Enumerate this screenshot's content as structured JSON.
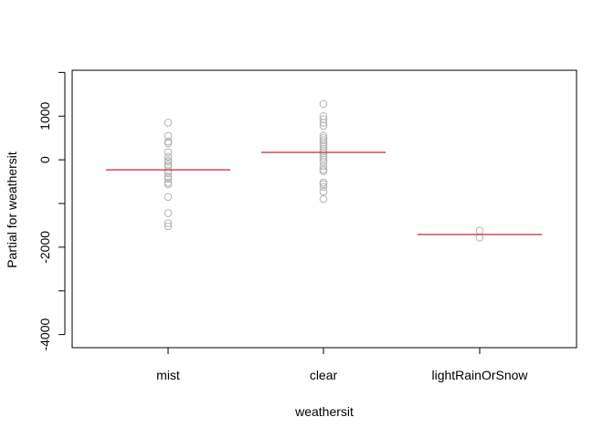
{
  "chart_data": {
    "type": "scatter",
    "title": "",
    "xlabel": "weathersit",
    "ylabel": "Partial for weathersit",
    "categories": [
      "mist",
      "clear",
      "lightRainOrSnow"
    ],
    "yticks": [
      -4000,
      -2000,
      0,
      1000
    ],
    "ytick_labels": [
      "-4000",
      "-2000",
      "0",
      "1000"
    ],
    "ylim": [
      -4300,
      2050
    ],
    "grid": false,
    "legend": "none",
    "partial_color": "#d1495b",
    "point_color": "#b3b3b3",
    "partials": [
      -230,
      170,
      -1710
    ],
    "points": [
      [
        850,
        550,
        420,
        380,
        180,
        70,
        -10,
        -50,
        -110,
        -150,
        -260,
        -310,
        -380,
        -430,
        -520,
        -560,
        -850,
        -1220,
        -1450,
        -1520
      ],
      [
        1280,
        1000,
        930,
        850,
        780,
        550,
        500,
        450,
        400,
        350,
        300,
        250,
        200,
        150,
        100,
        50,
        0,
        -50,
        -150,
        -220,
        -260,
        -520,
        -560,
        -620,
        -730,
        -900
      ],
      [
        -1620,
        -1780
      ]
    ]
  }
}
